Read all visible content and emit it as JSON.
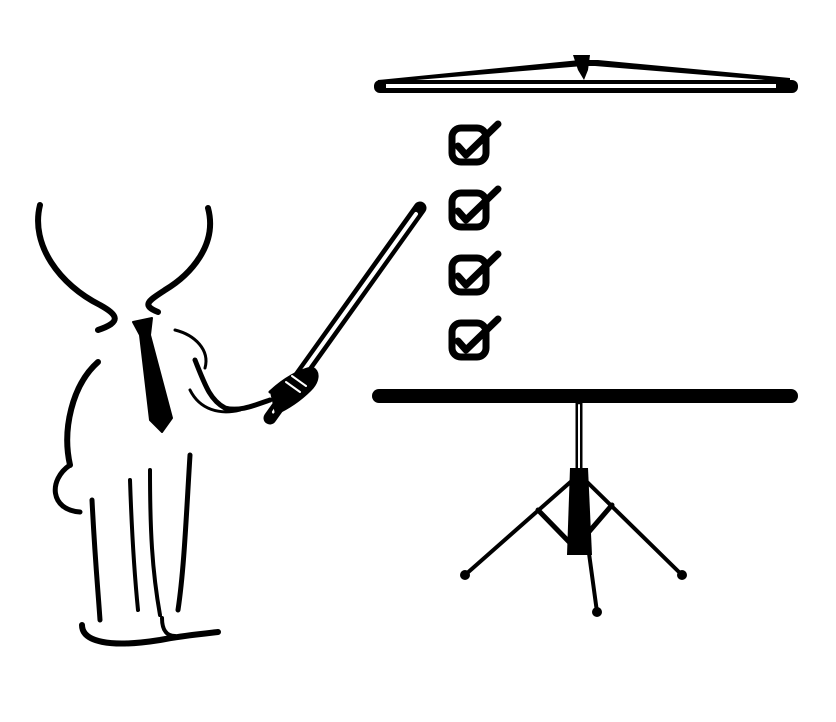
{
  "illustration": {
    "subject": "presenter-pointing-at-checklist",
    "colors": {
      "ink": "#000000",
      "paper": "#ffffff"
    },
    "checklist": {
      "items": [
        {
          "checked": true
        },
        {
          "checked": true
        },
        {
          "checked": true
        },
        {
          "checked": true
        }
      ]
    },
    "icons": {
      "figure": "stick-figure-icon",
      "pointer": "pointer-stick-icon",
      "screen": "projection-screen-icon",
      "tripod": "tripod-stand-icon",
      "checkbox": "checked-checkbox-icon"
    }
  }
}
